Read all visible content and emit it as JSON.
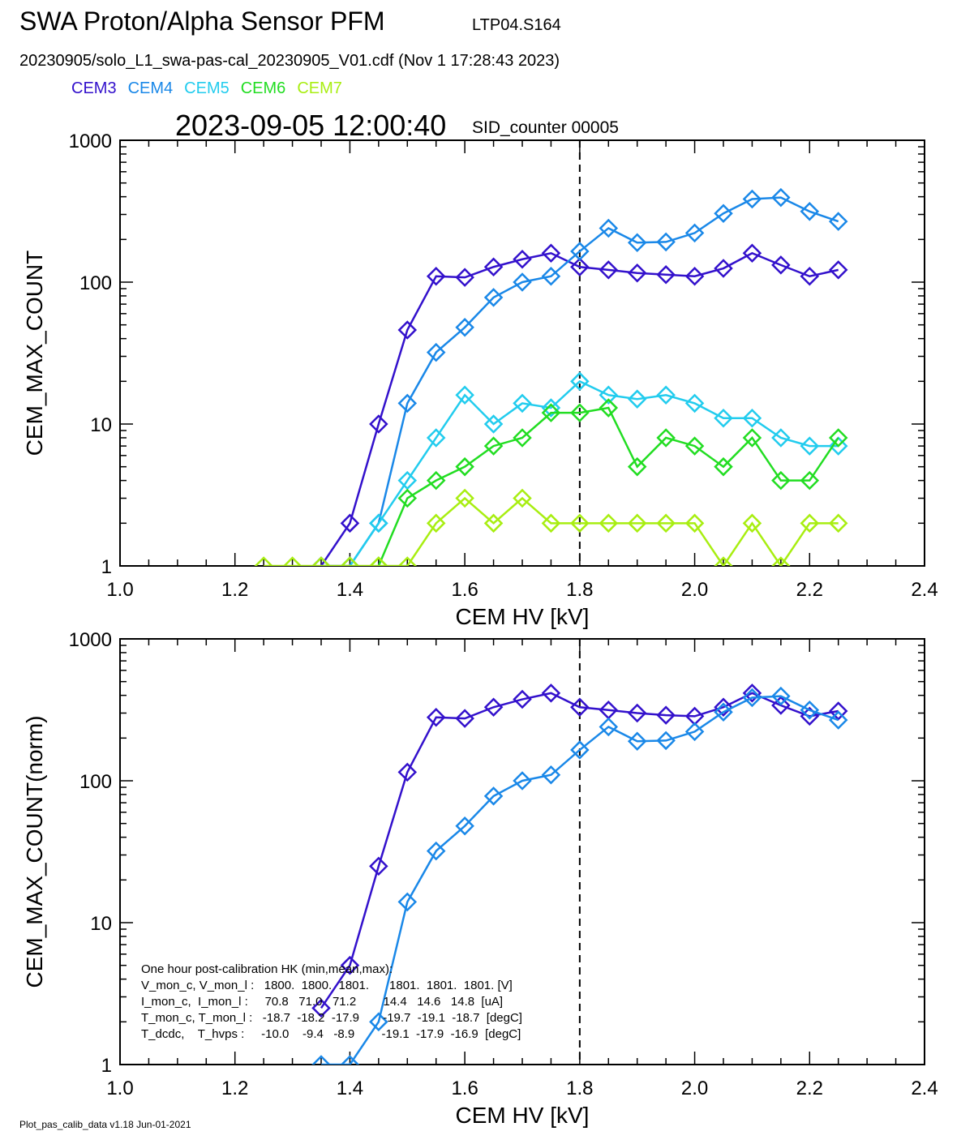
{
  "header": {
    "title": "SWA Proton/Alpha Sensor PFM",
    "subtitle_id": "LTP04.S164",
    "filename": "20230905/solo_L1_swa-pas-cal_20230905_V01.cdf  (Nov  1 17:28:43 2023)",
    "timestamp": "2023-09-05 12:00:40",
    "sid": "SID_counter 00005"
  },
  "legend": [
    {
      "name": "CEM3",
      "color": "#3311cc"
    },
    {
      "name": "CEM4",
      "color": "#1a88e8"
    },
    {
      "name": "CEM5",
      "color": "#22ccee"
    },
    {
      "name": "CEM6",
      "color": "#22dd22"
    },
    {
      "name": "CEM7",
      "color": "#a8ee11"
    }
  ],
  "hk": {
    "lines": [
      "One hour post-calibration HK (min,mean,max):",
      "V_mon_c, V_mon_l :   1800.  1800.  1801.      1801.  1801.  1801. [V]",
      "I_mon_c,  I_mon_l :     70.8   71.0   71.2        14.4   14.6   14.8  [uA]",
      "T_mon_c, T_mon_l :   -18.7  -18.2  -17.9       -19.7  -19.1  -18.7  [degC]",
      "T_dcdc,    T_hvps :     -10.0    -9.4   -8.9        -19.1  -17.9  -16.9  [degC]"
    ]
  },
  "footer": "Plot_pas_calib_data v1.18 Jun-01-2021",
  "chart_data": [
    {
      "type": "line",
      "xlabel": "CEM HV [kV]",
      "ylabel": "CEM_MAX_COUNT",
      "xlim": [
        1.0,
        2.4
      ],
      "ylim": [
        1,
        1000
      ],
      "yscale": "log",
      "xticks": [
        "1.0",
        "1.2",
        "1.4",
        "1.6",
        "1.8",
        "2.0",
        "2.2",
        "2.4"
      ],
      "yticks": [
        "1",
        "10",
        "100",
        "1000"
      ],
      "vline_x": 1.8,
      "marker": "diamond",
      "series": [
        {
          "name": "CEM3",
          "color": "#3311cc",
          "x": [
            1.35,
            1.4,
            1.45,
            1.5,
            1.55,
            1.6,
            1.65,
            1.7,
            1.75,
            1.8,
            1.85,
            1.9,
            1.95,
            2.0,
            2.05,
            2.1,
            2.15,
            2.2,
            2.25
          ],
          "y": [
            1,
            2,
            10,
            46,
            110,
            108,
            128,
            145,
            160,
            128,
            122,
            116,
            113,
            110,
            125,
            160,
            132,
            110,
            122
          ]
        },
        {
          "name": "CEM4",
          "color": "#1a88e8",
          "x": [
            1.35,
            1.4,
            1.45,
            1.5,
            1.55,
            1.6,
            1.65,
            1.7,
            1.75,
            1.8,
            1.85,
            1.9,
            1.95,
            2.0,
            2.05,
            2.1,
            2.15,
            2.2,
            2.25
          ],
          "y": [
            1,
            1,
            2,
            14,
            32,
            48,
            78,
            100,
            110,
            165,
            240,
            190,
            192,
            222,
            305,
            385,
            395,
            315,
            268
          ]
        },
        {
          "name": "CEM5",
          "color": "#22ccee",
          "x": [
            1.4,
            1.45,
            1.5,
            1.55,
            1.6,
            1.65,
            1.7,
            1.75,
            1.8,
            1.85,
            1.9,
            1.95,
            2.0,
            2.05,
            2.1,
            2.15,
            2.2,
            2.25
          ],
          "y": [
            1,
            2,
            4,
            8,
            16,
            10,
            14,
            13,
            20,
            16,
            15,
            16,
            14,
            11,
            11,
            8,
            7,
            7
          ]
        },
        {
          "name": "CEM6",
          "color": "#22dd22",
          "x": [
            1.45,
            1.5,
            1.55,
            1.6,
            1.65,
            1.7,
            1.75,
            1.8,
            1.85,
            1.9,
            1.95,
            2.0,
            2.05,
            2.1,
            2.15,
            2.2,
            2.25
          ],
          "y": [
            1,
            3,
            4,
            5,
            7,
            8,
            12,
            12,
            13,
            5,
            8,
            7,
            5,
            8,
            4,
            4,
            8
          ]
        },
        {
          "name": "CEM7",
          "color": "#a8ee11",
          "x": [
            1.25,
            1.3,
            1.35,
            1.4,
            1.45,
            1.5,
            1.55,
            1.6,
            1.65,
            1.7,
            1.75,
            1.8,
            1.85,
            1.9,
            1.95,
            2.0,
            2.05,
            2.1,
            2.15,
            2.2,
            2.25
          ],
          "y": [
            1,
            1,
            1,
            1,
            1,
            1,
            2,
            3,
            2,
            3,
            2,
            2,
            2,
            2,
            2,
            2,
            1,
            2,
            1,
            2,
            2
          ]
        }
      ]
    },
    {
      "type": "line",
      "xlabel": "CEM HV [kV]",
      "ylabel": "CEM_MAX_COUNT(norm)",
      "xlim": [
        1.0,
        2.4
      ],
      "ylim": [
        1,
        1000
      ],
      "yscale": "log",
      "xticks": [
        "1.0",
        "1.2",
        "1.4",
        "1.6",
        "1.8",
        "2.0",
        "2.2",
        "2.4"
      ],
      "yticks": [
        "1",
        "10",
        "100",
        "1000"
      ],
      "vline_x": 1.8,
      "marker": "diamond",
      "series": [
        {
          "name": "CEM3",
          "color": "#3311cc",
          "x": [
            1.35,
            1.4,
            1.45,
            1.5,
            1.55,
            1.6,
            1.65,
            1.7,
            1.75,
            1.8,
            1.85,
            1.9,
            1.95,
            2.0,
            2.05,
            2.1,
            2.15,
            2.2,
            2.25
          ],
          "y": [
            2.5,
            5,
            25,
            115,
            280,
            275,
            330,
            375,
            415,
            330,
            315,
            300,
            290,
            285,
            330,
            415,
            340,
            285,
            310
          ]
        },
        {
          "name": "CEM4",
          "color": "#1a88e8",
          "x": [
            1.35,
            1.4,
            1.45,
            1.5,
            1.55,
            1.6,
            1.65,
            1.7,
            1.75,
            1.8,
            1.85,
            1.9,
            1.95,
            2.0,
            2.05,
            2.1,
            2.15,
            2.2,
            2.25
          ],
          "y": [
            1,
            1,
            2,
            14,
            32,
            48,
            78,
            100,
            110,
            165,
            240,
            190,
            192,
            222,
            305,
            385,
            395,
            315,
            268
          ]
        }
      ]
    }
  ]
}
